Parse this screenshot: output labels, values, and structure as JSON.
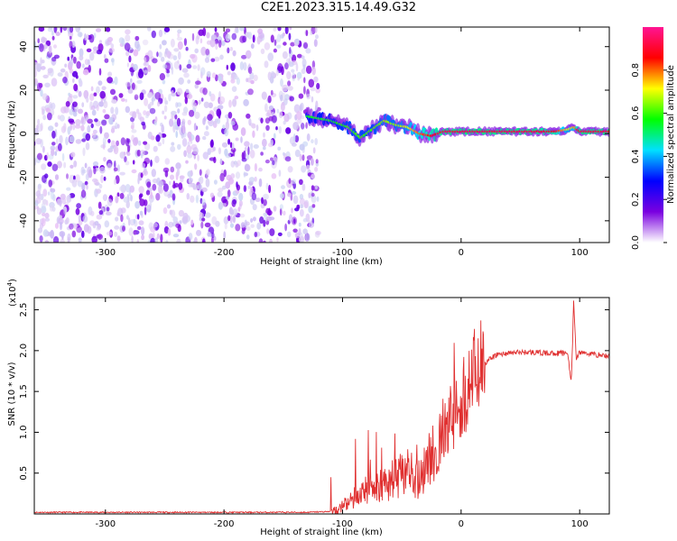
{
  "figure": {
    "title": "C2E1.2023.315.14.49.G32"
  },
  "chart_data": [
    {
      "type": "heatmap",
      "title": "",
      "xlabel": "Height of straight line (km)",
      "ylabel": "Frequency (Hz)",
      "xlim": [
        -360,
        125
      ],
      "ylim": [
        -50,
        49
      ],
      "xticks": [
        -300,
        -200,
        -100,
        0,
        100
      ],
      "yticks": [
        -40,
        -20,
        0,
        20,
        40
      ],
      "colorbar": {
        "label": "Normalized spectral amplitude",
        "range": [
          0.0,
          1.0
        ],
        "ticks": [
          0.0,
          0.2,
          0.4,
          0.6,
          0.8
        ],
        "colormap": "rainbow",
        "colors": [
          "#ffffff",
          "#7a00e0",
          "#0000ff",
          "#00e0ff",
          "#00ff00",
          "#ffff00",
          "#ff0000",
          "#ff1493"
        ]
      },
      "regions": [
        {
          "name": "noise",
          "x": [
            -360,
            -120
          ],
          "freq": [
            -50,
            49
          ],
          "amplitude": [
            0.0,
            0.15
          ]
        },
        {
          "name": "signal-ridge",
          "x": [
            -130,
            125
          ],
          "freq_center": 0,
          "amplitude": [
            0.3,
            1.0
          ]
        }
      ],
      "ridge": {
        "x": [
          -130,
          -110,
          -95,
          -85,
          -75,
          -65,
          -55,
          -45,
          -35,
          -25,
          -15,
          0,
          20,
          40,
          60,
          80,
          90,
          95,
          100,
          110,
          125
        ],
        "freq": [
          8,
          6,
          3,
          -2,
          2,
          6,
          4,
          3,
          0,
          -1,
          1,
          1,
          1,
          1,
          1,
          1,
          2,
          3,
          1,
          1,
          1
        ],
        "amplitude": [
          0.55,
          0.55,
          0.6,
          0.6,
          0.6,
          0.65,
          0.65,
          0.7,
          0.8,
          0.85,
          0.9,
          0.9,
          0.9,
          0.9,
          0.9,
          0.85,
          0.7,
          0.75,
          0.9,
          0.9,
          0.9
        ]
      }
    },
    {
      "type": "line",
      "title": "",
      "xlabel": "Height of straight line (km)",
      "ylabel": "SNR (10 * v/v)",
      "yscale_label": "(x10",
      "yscale_exp": "4",
      "yscale_close": ")",
      "xlim": [
        -360,
        125
      ],
      "ylim": [
        0,
        2.65
      ],
      "xticks": [
        -300,
        -200,
        -100,
        0,
        100
      ],
      "yticks": [
        0.5,
        1.0,
        1.5,
        2.0,
        2.5
      ],
      "series": [
        {
          "color": "#e03030",
          "x": [
            -360,
            -300,
            -200,
            -130,
            -110,
            -100,
            -90,
            -80,
            -70,
            -60,
            -50,
            -40,
            -30,
            -20,
            -10,
            0,
            5,
            10,
            20,
            30,
            40,
            50,
            60,
            70,
            80,
            90,
            93,
            95,
            97,
            100,
            110,
            125
          ],
          "y": [
            0.02,
            0.02,
            0.02,
            0.02,
            0.03,
            0.08,
            0.2,
            0.3,
            0.35,
            0.4,
            0.45,
            0.5,
            0.6,
            0.8,
            1.1,
            1.4,
            1.55,
            1.7,
            1.85,
            1.95,
            1.97,
            1.98,
            1.98,
            1.97,
            1.97,
            1.97,
            1.6,
            2.62,
            1.9,
            1.98,
            1.96,
            1.93
          ]
        }
      ]
    }
  ]
}
